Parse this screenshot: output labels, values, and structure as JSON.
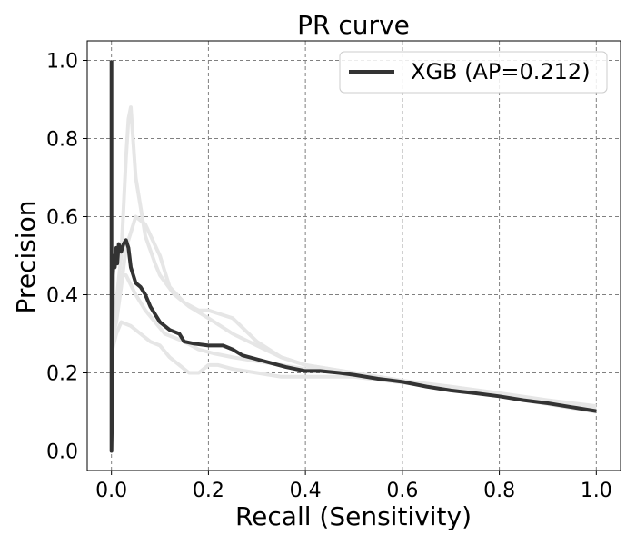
{
  "chart_data": {
    "type": "line",
    "title": "PR curve",
    "xlabel": "Recall (Sensitivity)",
    "ylabel": "Precision",
    "xlim": [
      -0.05,
      1.05
    ],
    "ylim": [
      -0.05,
      1.05
    ],
    "x_ticks": [
      "0.0",
      "0.2",
      "0.4",
      "0.6",
      "0.8",
      "1.0"
    ],
    "y_ticks": [
      "0.0",
      "0.2",
      "0.4",
      "0.6",
      "0.8",
      "1.0"
    ],
    "x_tick_values": [
      0.0,
      0.2,
      0.4,
      0.6,
      0.8,
      1.0
    ],
    "y_tick_values": [
      0.0,
      0.2,
      0.4,
      0.6,
      0.8,
      1.0
    ],
    "grid": true,
    "legend_position": "top-right",
    "main_series": {
      "name": "XGB (AP=0.212)",
      "color": "#333333",
      "points": [
        [
          0.0,
          1.0
        ],
        [
          0.0,
          0.0
        ],
        [
          0.002,
          0.15
        ],
        [
          0.003,
          0.45
        ],
        [
          0.005,
          0.5
        ],
        [
          0.007,
          0.47
        ],
        [
          0.01,
          0.52
        ],
        [
          0.012,
          0.48
        ],
        [
          0.015,
          0.53
        ],
        [
          0.02,
          0.51
        ],
        [
          0.025,
          0.53
        ],
        [
          0.03,
          0.54
        ],
        [
          0.035,
          0.52
        ],
        [
          0.04,
          0.47
        ],
        [
          0.045,
          0.45
        ],
        [
          0.05,
          0.43
        ],
        [
          0.06,
          0.42
        ],
        [
          0.07,
          0.4
        ],
        [
          0.08,
          0.37
        ],
        [
          0.09,
          0.35
        ],
        [
          0.1,
          0.33
        ],
        [
          0.12,
          0.31
        ],
        [
          0.14,
          0.3
        ],
        [
          0.15,
          0.28
        ],
        [
          0.17,
          0.275
        ],
        [
          0.2,
          0.27
        ],
        [
          0.23,
          0.27
        ],
        [
          0.25,
          0.26
        ],
        [
          0.27,
          0.245
        ],
        [
          0.3,
          0.235
        ],
        [
          0.33,
          0.225
        ],
        [
          0.36,
          0.215
        ],
        [
          0.4,
          0.205
        ],
        [
          0.43,
          0.205
        ],
        [
          0.47,
          0.2
        ],
        [
          0.5,
          0.195
        ],
        [
          0.55,
          0.185
        ],
        [
          0.6,
          0.177
        ],
        [
          0.65,
          0.165
        ],
        [
          0.7,
          0.155
        ],
        [
          0.75,
          0.148
        ],
        [
          0.8,
          0.14
        ],
        [
          0.85,
          0.13
        ],
        [
          0.9,
          0.122
        ],
        [
          0.95,
          0.112
        ],
        [
          1.0,
          0.102
        ]
      ]
    },
    "background_series_color": "#e6e6e6",
    "background_series": [
      {
        "points": [
          [
            0.0,
            0.32
          ],
          [
            0.01,
            0.38
          ],
          [
            0.02,
            0.5
          ],
          [
            0.03,
            0.75
          ],
          [
            0.035,
            0.85
          ],
          [
            0.04,
            0.88
          ],
          [
            0.05,
            0.7
          ],
          [
            0.07,
            0.55
          ],
          [
            0.09,
            0.48
          ],
          [
            0.1,
            0.45
          ],
          [
            0.13,
            0.4
          ],
          [
            0.16,
            0.37
          ],
          [
            0.2,
            0.34
          ],
          [
            0.25,
            0.3
          ],
          [
            0.3,
            0.27
          ],
          [
            0.35,
            0.24
          ],
          [
            0.4,
            0.22
          ],
          [
            0.5,
            0.2
          ],
          [
            0.6,
            0.18
          ],
          [
            0.7,
            0.16
          ],
          [
            0.8,
            0.14
          ],
          [
            0.9,
            0.125
          ],
          [
            1.0,
            0.11
          ]
        ]
      },
      {
        "points": [
          [
            0.0,
            0.28
          ],
          [
            0.01,
            0.33
          ],
          [
            0.02,
            0.42
          ],
          [
            0.03,
            0.52
          ],
          [
            0.05,
            0.6
          ],
          [
            0.07,
            0.58
          ],
          [
            0.1,
            0.5
          ],
          [
            0.12,
            0.42
          ],
          [
            0.15,
            0.38
          ],
          [
            0.18,
            0.36
          ],
          [
            0.2,
            0.36
          ],
          [
            0.25,
            0.34
          ],
          [
            0.3,
            0.28
          ],
          [
            0.35,
            0.24
          ],
          [
            0.4,
            0.22
          ],
          [
            0.5,
            0.2
          ],
          [
            0.6,
            0.18
          ],
          [
            0.7,
            0.165
          ],
          [
            0.8,
            0.148
          ],
          [
            0.9,
            0.13
          ],
          [
            1.0,
            0.115
          ]
        ]
      },
      {
        "points": [
          [
            0.0,
            0.25
          ],
          [
            0.01,
            0.3
          ],
          [
            0.02,
            0.33
          ],
          [
            0.04,
            0.32
          ],
          [
            0.06,
            0.3
          ],
          [
            0.08,
            0.28
          ],
          [
            0.1,
            0.27
          ],
          [
            0.12,
            0.24
          ],
          [
            0.14,
            0.22
          ],
          [
            0.16,
            0.2
          ],
          [
            0.18,
            0.2
          ],
          [
            0.2,
            0.22
          ],
          [
            0.22,
            0.22
          ],
          [
            0.25,
            0.21
          ],
          [
            0.3,
            0.2
          ],
          [
            0.35,
            0.19
          ],
          [
            0.4,
            0.19
          ],
          [
            0.5,
            0.19
          ],
          [
            0.6,
            0.175
          ],
          [
            0.7,
            0.16
          ],
          [
            0.8,
            0.145
          ],
          [
            0.9,
            0.127
          ],
          [
            1.0,
            0.108
          ]
        ]
      },
      {
        "points": [
          [
            0.0,
            0.3
          ],
          [
            0.01,
            0.35
          ],
          [
            0.02,
            0.45
          ],
          [
            0.03,
            0.45
          ],
          [
            0.05,
            0.4
          ],
          [
            0.07,
            0.36
          ],
          [
            0.09,
            0.33
          ],
          [
            0.11,
            0.3
          ],
          [
            0.13,
            0.29
          ],
          [
            0.15,
            0.28
          ],
          [
            0.18,
            0.26
          ],
          [
            0.21,
            0.25
          ],
          [
            0.25,
            0.24
          ],
          [
            0.3,
            0.23
          ],
          [
            0.35,
            0.22
          ],
          [
            0.4,
            0.21
          ],
          [
            0.5,
            0.2
          ],
          [
            0.6,
            0.178
          ],
          [
            0.7,
            0.158
          ],
          [
            0.8,
            0.14
          ],
          [
            0.9,
            0.12
          ],
          [
            1.0,
            0.1
          ]
        ]
      }
    ]
  }
}
